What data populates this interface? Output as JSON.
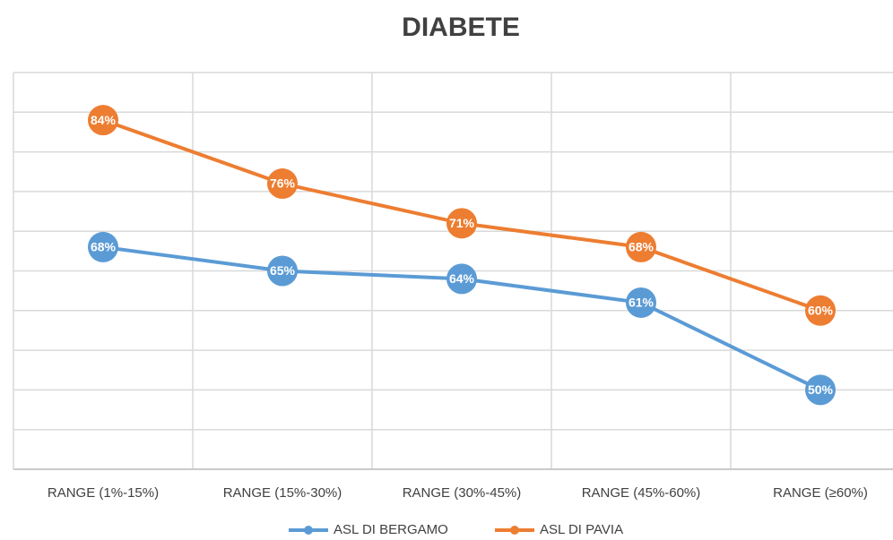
{
  "chart_data": {
    "type": "line",
    "title": "DIABETE",
    "categories": [
      "RANGE (1%-15%)",
      "RANGE (15%-30%)",
      "RANGE (30%-45%)",
      "RANGE (45%-60%)",
      "RANGE (≥60%)"
    ],
    "series": [
      {
        "name": "ASL DI BERGAMO",
        "color": "#5b9bd5",
        "values": [
          68,
          65,
          64,
          61,
          50
        ],
        "value_labels": [
          "68%",
          "65%",
          "64%",
          "61%",
          "50%"
        ]
      },
      {
        "name": "ASL DI PAVIA",
        "color": "#ed7d31",
        "values": [
          84,
          76,
          71,
          68,
          60
        ],
        "value_labels": [
          "84%",
          "76%",
          "71%",
          "68%",
          "60%"
        ]
      }
    ],
    "ylim": [
      40,
      90
    ],
    "yticks": [
      40,
      45,
      50,
      55,
      60,
      65,
      70,
      75,
      80,
      85,
      90
    ],
    "grid": true
  }
}
